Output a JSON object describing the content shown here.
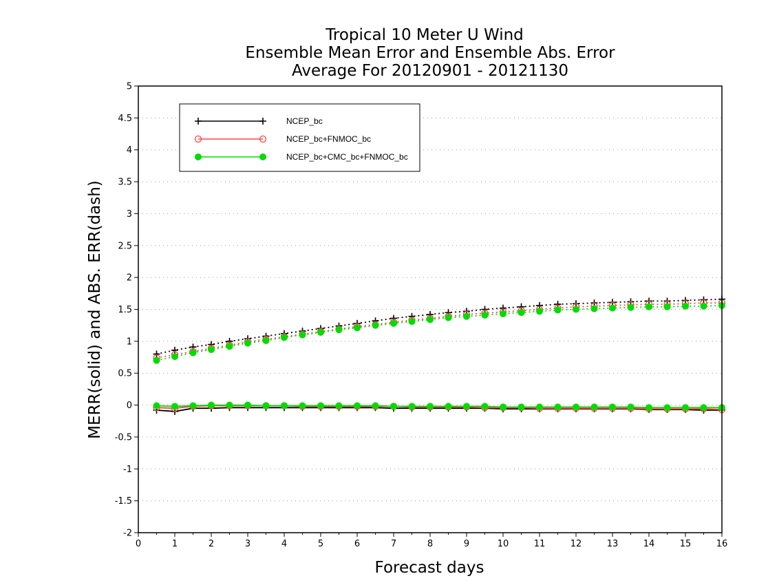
{
  "chart_data": {
    "type": "line",
    "title_lines": [
      "Tropical 10 Meter U Wind",
      "Ensemble Mean Error and Ensemble Abs. Error",
      "Average For 20120901 - 20121130"
    ],
    "xlabel": "Forecast days",
    "ylabel": "MERR(solid) and ABS. ERR(dash)",
    "xlim": [
      0,
      16
    ],
    "ylim": [
      -2,
      5
    ],
    "x_ticks": [
      0,
      1,
      2,
      3,
      4,
      5,
      6,
      7,
      8,
      9,
      10,
      11,
      12,
      13,
      14,
      15,
      16
    ],
    "y_ticks": [
      -2,
      -1.5,
      -1,
      -0.5,
      0,
      0.5,
      1,
      1.5,
      2,
      2.5,
      3,
      3.5,
      4,
      4.5,
      5
    ],
    "y_tick_labels": [
      "-2",
      "-1.5",
      "-1",
      "-0.5",
      "0",
      "0.5",
      "1",
      "1.5",
      "2",
      "2.5",
      "3",
      "3.5",
      "4",
      "4.5",
      "5"
    ],
    "grid": "horizontal dotted",
    "legend_position": "top-left",
    "x": [
      0.5,
      1,
      1.5,
      2,
      2.5,
      3,
      3.5,
      4,
      4.5,
      5,
      5.5,
      6,
      6.5,
      7,
      7.5,
      8,
      8.5,
      9,
      9.5,
      10,
      10.5,
      11,
      11.5,
      12,
      12.5,
      13,
      13.5,
      14,
      14.5,
      15,
      15.5,
      16
    ],
    "series": [
      {
        "name": "NCEP_bc",
        "color": "#000000",
        "marker": "plus",
        "merr": [
          -0.08,
          -0.1,
          -0.05,
          -0.05,
          -0.04,
          -0.04,
          -0.04,
          -0.04,
          -0.04,
          -0.04,
          -0.04,
          -0.04,
          -0.04,
          -0.05,
          -0.05,
          -0.05,
          -0.05,
          -0.05,
          -0.05,
          -0.06,
          -0.06,
          -0.06,
          -0.06,
          -0.06,
          -0.06,
          -0.06,
          -0.06,
          -0.07,
          -0.07,
          -0.07,
          -0.08,
          -0.08
        ],
        "abs_err": [
          0.8,
          0.86,
          0.91,
          0.95,
          1.0,
          1.04,
          1.08,
          1.12,
          1.16,
          1.2,
          1.24,
          1.28,
          1.32,
          1.36,
          1.39,
          1.42,
          1.45,
          1.47,
          1.5,
          1.52,
          1.54,
          1.56,
          1.58,
          1.59,
          1.6,
          1.61,
          1.62,
          1.63,
          1.63,
          1.64,
          1.65,
          1.66
        ]
      },
      {
        "name": "NCEP_bc+FNMOC_bc",
        "color": "#ff4444",
        "marker": "open-circle",
        "merr": [
          -0.04,
          -0.05,
          -0.02,
          -0.01,
          -0.01,
          -0.01,
          -0.01,
          -0.01,
          -0.02,
          -0.02,
          -0.02,
          -0.02,
          -0.02,
          -0.02,
          -0.03,
          -0.03,
          -0.03,
          -0.03,
          -0.04,
          -0.04,
          -0.04,
          -0.05,
          -0.05,
          -0.05,
          -0.05,
          -0.05,
          -0.05,
          -0.06,
          -0.06,
          -0.06,
          -0.06,
          -0.07
        ],
        "abs_err": [
          0.74,
          0.79,
          0.84,
          0.89,
          0.94,
          0.99,
          1.03,
          1.07,
          1.11,
          1.15,
          1.19,
          1.23,
          1.26,
          1.3,
          1.33,
          1.36,
          1.39,
          1.42,
          1.44,
          1.46,
          1.48,
          1.5,
          1.52,
          1.54,
          1.55,
          1.56,
          1.57,
          1.58,
          1.58,
          1.59,
          1.6,
          1.6
        ]
      },
      {
        "name": "NCEP_bc+CMC_bc+FNMOC_bc",
        "color": "#00dd00",
        "marker": "filled-circle",
        "merr": [
          -0.01,
          -0.02,
          -0.01,
          0.0,
          0.0,
          0.0,
          -0.01,
          -0.01,
          -0.01,
          -0.01,
          -0.01,
          -0.01,
          -0.01,
          -0.02,
          -0.02,
          -0.02,
          -0.02,
          -0.02,
          -0.02,
          -0.03,
          -0.03,
          -0.03,
          -0.03,
          -0.03,
          -0.03,
          -0.03,
          -0.03,
          -0.04,
          -0.04,
          -0.04,
          -0.04,
          -0.04
        ],
        "abs_err": [
          0.7,
          0.76,
          0.82,
          0.87,
          0.92,
          0.97,
          1.01,
          1.06,
          1.1,
          1.14,
          1.18,
          1.21,
          1.25,
          1.28,
          1.31,
          1.34,
          1.37,
          1.39,
          1.41,
          1.43,
          1.45,
          1.47,
          1.49,
          1.5,
          1.51,
          1.52,
          1.53,
          1.54,
          1.54,
          1.55,
          1.55,
          1.56
        ]
      }
    ]
  }
}
